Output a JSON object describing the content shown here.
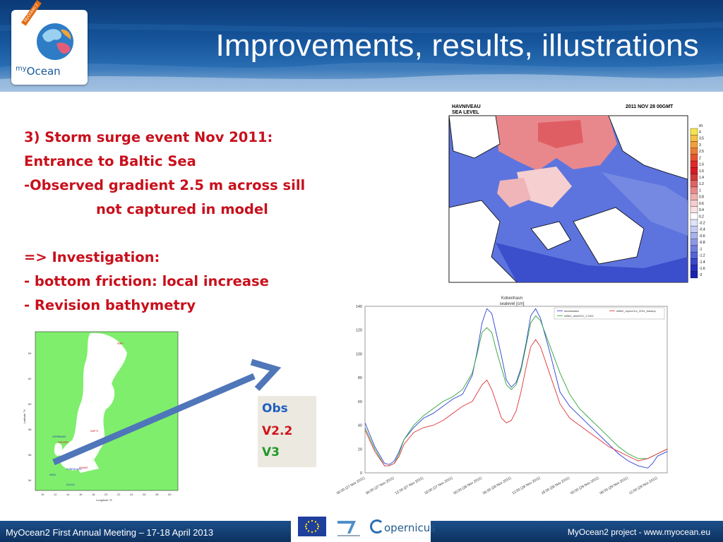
{
  "header": {
    "title": "Improvements, results, illustrations",
    "logo_text": "myOcean",
    "logo_ribbon": "MyOcean 2"
  },
  "content": {
    "lines": [
      "3) Storm surge event Nov 2011:",
      "Entrance to Baltic Sea",
      "-Observed gradient 2.5 m across sill",
      "not captured in model",
      "",
      "=> Investigation:",
      "- bottom friction: local increase",
      "- Revision bathymetry"
    ]
  },
  "surge_map": {
    "title_left_1": "HAVNIVEAU",
    "title_left_2": "SEA LEVEL",
    "title_right": "2011 NOV 28 00GMT",
    "unit": "m",
    "colorbar_labels": [
      "4",
      "3.5",
      "3",
      "2.5",
      "2",
      "1.6",
      "1.6",
      "1.4",
      "1.2",
      "1",
      "0.8",
      "0.6",
      "0.4",
      "0.2",
      "-0.2",
      "-0.4",
      "-0.6",
      "-0.8",
      "-1",
      "-1.2",
      "-1.4",
      "-1.6",
      "-2"
    ],
    "colorbar_colors": [
      "#f4e64a",
      "#f6c243",
      "#f2a03a",
      "#ee7b33",
      "#e9512e",
      "#e22a2a",
      "#d91b25",
      "#d43a3a",
      "#df6363",
      "#e88a8a",
      "#f0b0b0",
      "#f6cece",
      "#fae2e2",
      "#ffffff",
      "#dfe3f8",
      "#c5ccf3",
      "#a8b3ec",
      "#8d99e5",
      "#6f7ede",
      "#5564d6",
      "#3a47cd",
      "#2430c4",
      "#1a22b0"
    ]
  },
  "mini_map": {
    "y_ticks": [
      "64",
      "62",
      "60",
      "58",
      "56",
      "54"
    ],
    "x_ticks": [
      "10",
      "12",
      "14",
      "16",
      "18",
      "20",
      "22",
      "24",
      "26",
      "28",
      "30"
    ],
    "xlabel": "Longitude °E",
    "ylabel": "Latitude °N",
    "stations": [
      "KMP*",
      "KMP*3",
      "GEDSER",
      "KRAMS",
      "HORNBAEK",
      "KOBENHAVN",
      "KMSL",
      "KOLKA"
    ]
  },
  "legend_box": {
    "items": [
      {
        "label": "Obs",
        "color": "#1f5fbf"
      },
      {
        "label": "V2.2",
        "color": "#d0141c"
      },
      {
        "label": "V3",
        "color": "#1f9a2a"
      }
    ]
  },
  "chart_data": {
    "type": "line",
    "title": "Kobenhavn",
    "subtitle": "sealevel [cm]",
    "ylim": [
      0,
      140
    ],
    "y_ticks": [
      0,
      20,
      40,
      60,
      80,
      100,
      120,
      140
    ],
    "x_ticks": [
      "00:00 (27 Nov 2011)",
      "06:00 (27 Nov 2011)",
      "12:00 (27 Nov 2011)",
      "18:00 (27 Nov 2011)",
      "00:00 (28 Nov 2011)",
      "06:00 (28 Nov 2011)",
      "12:00 (28 Nov 2011)",
      "18:00 (28 Nov 2011)",
      "00:00 (29 Nov 2011)",
      "06:00 (29 Nov 2011)",
      "12:00 (29 Nov 2011)"
    ],
    "x_range_hours": [
      0,
      62
    ],
    "legend": [
      "seaobsdata",
      "wflle2_obs2012_1.2011",
      "wflle2_myov21rv_2011_backup"
    ],
    "series": [
      {
        "name": "seaobsdata",
        "color": "#2b3fd6",
        "x": [
          0,
          2,
          4,
          5,
          6,
          7,
          8,
          10,
          12,
          14,
          16,
          18,
          20,
          22,
          23,
          24,
          25,
          26,
          27,
          28,
          29,
          30,
          31,
          32,
          33,
          34,
          35,
          36,
          38,
          40,
          42,
          44,
          46,
          48,
          50,
          52,
          54,
          56,
          58,
          59,
          60,
          62
        ],
        "y": [
          42,
          22,
          8,
          7,
          10,
          18,
          28,
          38,
          46,
          50,
          56,
          62,
          66,
          82,
          102,
          126,
          138,
          134,
          116,
          98,
          78,
          72,
          76,
          88,
          108,
          132,
          138,
          130,
          100,
          68,
          56,
          48,
          40,
          32,
          24,
          16,
          10,
          6,
          4,
          8,
          14,
          18
        ]
      },
      {
        "name": "wflle2_obs2012_1.2011",
        "color": "#2ea23a",
        "x": [
          0,
          2,
          4,
          5,
          6,
          7,
          8,
          10,
          12,
          14,
          16,
          18,
          20,
          22,
          23,
          24,
          25,
          26,
          27,
          28,
          29,
          30,
          31,
          32,
          33,
          34,
          35,
          36,
          38,
          40,
          42,
          44,
          46,
          48,
          50,
          52,
          54,
          56,
          58,
          60,
          62
        ],
        "y": [
          38,
          20,
          6,
          6,
          8,
          16,
          28,
          40,
          48,
          54,
          60,
          64,
          70,
          84,
          100,
          118,
          122,
          118,
          102,
          88,
          74,
          70,
          74,
          86,
          106,
          126,
          132,
          128,
          106,
          84,
          66,
          54,
          46,
          38,
          30,
          22,
          16,
          12,
          12,
          16,
          20
        ]
      },
      {
        "name": "wflle2_myov21rv_2011_backup",
        "color": "#e0333a",
        "x": [
          0,
          2,
          4,
          5,
          6,
          7,
          8,
          10,
          12,
          14,
          16,
          18,
          20,
          22,
          24,
          25,
          26,
          27,
          28,
          29,
          30,
          31,
          32,
          33,
          34,
          35,
          36,
          38,
          40,
          42,
          44,
          46,
          48,
          50,
          52,
          54,
          56,
          58,
          60,
          62
        ],
        "y": [
          36,
          18,
          6,
          6,
          8,
          14,
          24,
          34,
          38,
          40,
          44,
          50,
          56,
          60,
          74,
          78,
          70,
          58,
          46,
          42,
          44,
          52,
          68,
          88,
          106,
          112,
          106,
          82,
          58,
          46,
          40,
          34,
          28,
          22,
          18,
          14,
          10,
          12,
          16,
          20
        ]
      }
    ]
  },
  "footer": {
    "left": "MyOcean2 First Annual Meeting – 17-18 April 2013",
    "right": "MyOcean2 project - www.myocean.eu",
    "copernicus": "opernicus"
  }
}
